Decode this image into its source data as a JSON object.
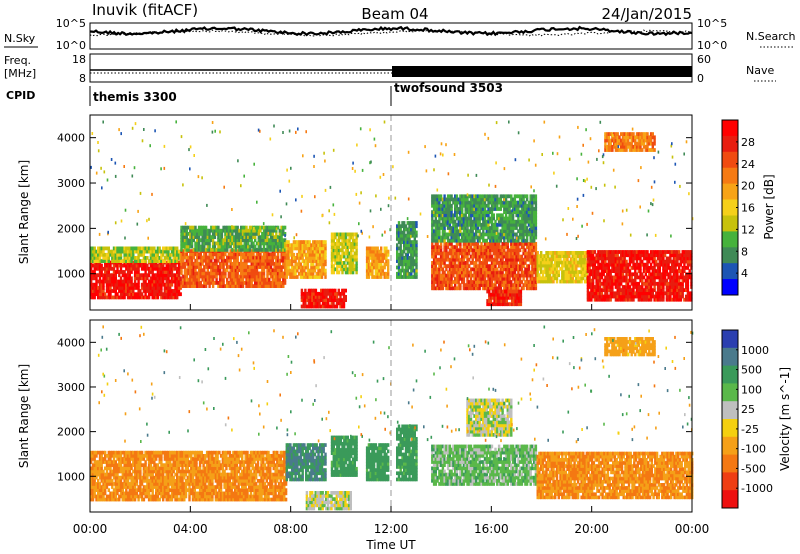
{
  "header": {
    "station": "Inuvik (fitACF)",
    "beam": "Beam 04",
    "date": "24/Jan/2015"
  },
  "strip_labels": {
    "nsky": "N.Sky",
    "nsearch": "N.Search",
    "freq": "Freq.",
    "freq_unit": "[MHz]",
    "nave": "Nave",
    "cpid": "CPID"
  },
  "strip_ticks": {
    "noise_left": [
      "10^5",
      "10^0"
    ],
    "noise_right": [
      "10^5",
      "10^0"
    ],
    "freq_left": [
      "18",
      "8"
    ],
    "nave_right": [
      "60",
      "0"
    ]
  },
  "cpid_segments": [
    {
      "label": "themis 3300",
      "start_hour": 0
    },
    {
      "label": "twofsound 3503",
      "start_hour": 12
    }
  ],
  "colors": {
    "power": [
      "#0000ff",
      "#1c55b4",
      "#3f8a56",
      "#46b23c",
      "#c7c20c",
      "#f5d01a",
      "#f7a316",
      "#f67a12",
      "#f04b10",
      "#e81d0f",
      "#ff0000"
    ],
    "velocity": [
      "#2b3fb0",
      "#4a7a8c",
      "#3a9a5a",
      "#5ab84a",
      "#bfbfbf",
      "#f4d010",
      "#f5a018",
      "#f47812",
      "#ef3e12",
      "#ee1010"
    ],
    "cpid_divider": "#999999"
  },
  "chart_data": [
    {
      "type": "heatmap",
      "id": "power",
      "title": "",
      "xlabel": "",
      "ylabel": "Slant Range [km]",
      "xlim": [
        0,
        24
      ],
      "ylim": [
        200,
        4500
      ],
      "y_ticks": [
        "1000",
        "2000",
        "3000",
        "4000"
      ],
      "colorbar_label": "Power [dB]",
      "colorbar_ticks": [
        "4",
        "8",
        "12",
        "16",
        "20",
        "24",
        "28"
      ],
      "colorbar_range": [
        0,
        30
      ],
      "regions": [
        {
          "t0": 0.0,
          "t1": 3.6,
          "r0": 450,
          "r1": 1250,
          "value": 27
        },
        {
          "t0": 0.0,
          "t1": 3.6,
          "r0": 1250,
          "r1": 1600,
          "value": 12
        },
        {
          "t0": 3.6,
          "t1": 7.8,
          "r0": 700,
          "r1": 1500,
          "value": 22
        },
        {
          "t0": 3.6,
          "t1": 7.8,
          "r0": 1500,
          "r1": 2000,
          "value": 9
        },
        {
          "t0": 7.8,
          "t1": 9.4,
          "r0": 900,
          "r1": 1700,
          "value": 18
        },
        {
          "t0": 8.4,
          "t1": 10.2,
          "r0": 250,
          "r1": 650,
          "value": 27
        },
        {
          "t0": 9.6,
          "t1": 10.6,
          "r0": 1000,
          "r1": 1900,
          "value": 13
        },
        {
          "t0": 11.0,
          "t1": 11.9,
          "r0": 900,
          "r1": 1600,
          "value": 18
        },
        {
          "t0": 12.2,
          "t1": 13.0,
          "r0": 900,
          "r1": 2100,
          "value": 8
        },
        {
          "t0": 13.6,
          "t1": 17.8,
          "r0": 650,
          "r1": 1700,
          "value": 23
        },
        {
          "t0": 13.6,
          "t1": 17.8,
          "r0": 1700,
          "r1": 2700,
          "value": 8
        },
        {
          "t0": 15.8,
          "t1": 17.2,
          "r0": 300,
          "r1": 600,
          "value": 26
        },
        {
          "t0": 17.8,
          "t1": 19.8,
          "r0": 800,
          "r1": 1500,
          "value": 14
        },
        {
          "t0": 19.8,
          "t1": 24.0,
          "r0": 400,
          "r1": 1500,
          "value": 27
        },
        {
          "t0": 20.5,
          "t1": 22.5,
          "r0": 3700,
          "r1": 4100,
          "value": 20
        }
      ]
    },
    {
      "type": "heatmap",
      "id": "velocity",
      "title": "",
      "xlabel": "Time UT",
      "ylabel": "Slant Range [km]",
      "xlim": [
        0,
        24
      ],
      "ylim": [
        200,
        4500
      ],
      "x_ticks": [
        "00:00",
        "04:00",
        "08:00",
        "12:00",
        "16:00",
        "20:00",
        "00:00"
      ],
      "y_ticks": [
        "1000",
        "2000",
        "3000",
        "4000"
      ],
      "colorbar_label": "Velocity [m s^-1]",
      "colorbar_ticks": [
        "1000",
        "500",
        "100",
        "25",
        "-25",
        "-100",
        "-500",
        "-1000"
      ],
      "regions": [
        {
          "t0": 0.0,
          "t1": 7.8,
          "r0": 450,
          "r1": 1550,
          "value": -300
        },
        {
          "t0": 7.8,
          "t1": 9.4,
          "r0": 900,
          "r1": 1700,
          "value": 300
        },
        {
          "t0": 8.6,
          "t1": 10.4,
          "r0": 250,
          "r1": 650,
          "value": 0
        },
        {
          "t0": 9.6,
          "t1": 10.6,
          "r0": 1000,
          "r1": 1900,
          "value": 150
        },
        {
          "t0": 11.0,
          "t1": 11.9,
          "r0": 900,
          "r1": 1700,
          "value": 150
        },
        {
          "t0": 12.2,
          "t1": 13.0,
          "r0": 900,
          "r1": 2100,
          "value": 150
        },
        {
          "t0": 13.6,
          "t1": 17.8,
          "r0": 800,
          "r1": 1700,
          "value": 60
        },
        {
          "t0": 15.0,
          "t1": 16.8,
          "r0": 1900,
          "r1": 2700,
          "value": 0
        },
        {
          "t0": 17.8,
          "t1": 24.0,
          "r0": 500,
          "r1": 1500,
          "value": -300
        },
        {
          "t0": 20.5,
          "t1": 22.5,
          "r0": 3700,
          "r1": 4100,
          "value": -150
        }
      ]
    }
  ]
}
